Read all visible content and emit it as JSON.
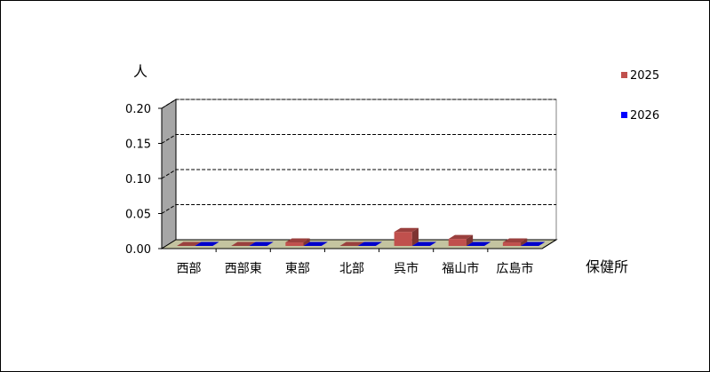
{
  "chart_data": {
    "type": "bar",
    "style": "3d-clustered",
    "ylabel": "人",
    "xlabel": "保健所",
    "categories": [
      "西部",
      "西部東",
      "東部",
      "北部",
      "呉市",
      "福山市",
      "広島市"
    ],
    "series": [
      {
        "name": "2025",
        "color": "#c0504d",
        "values": [
          0,
          0,
          0.005,
          0,
          0.02,
          0.01,
          0.005
        ]
      },
      {
        "name": "2026",
        "color": "#0000ff",
        "values": [
          0,
          0,
          0,
          0,
          0,
          0,
          0
        ]
      }
    ],
    "ylim": [
      0,
      0.2
    ],
    "yticks": [
      "0.00",
      "0.05",
      "0.10",
      "0.15",
      "0.20"
    ],
    "grid": true,
    "legend": "right",
    "colors": {
      "wall": "#a6a6a6",
      "floor": "#c4c4a0"
    }
  }
}
